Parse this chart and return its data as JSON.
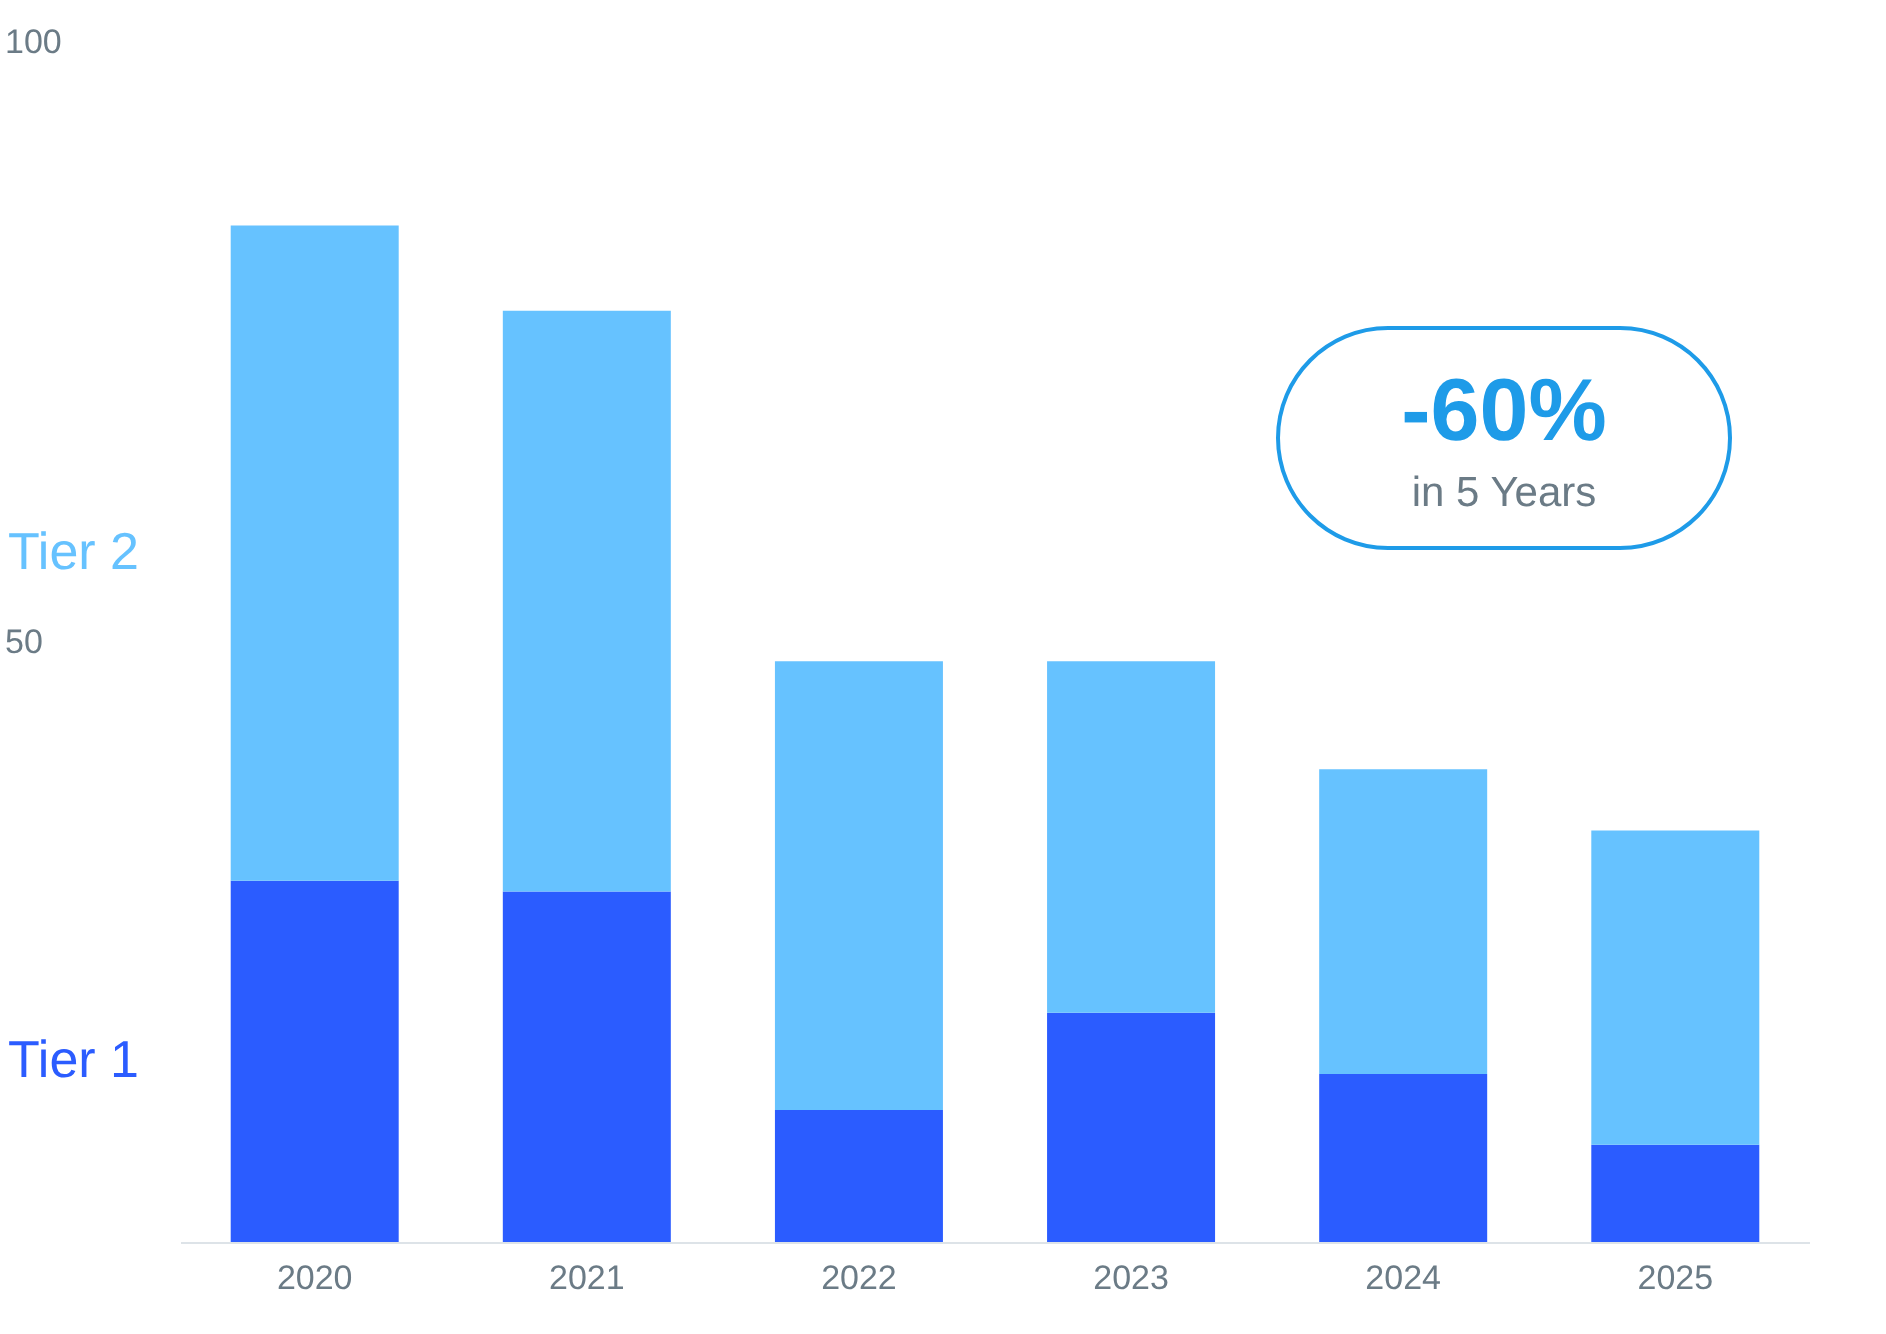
{
  "chart_data": {
    "type": "bar",
    "stacked": true,
    "categories": [
      "2020",
      "2021",
      "2022",
      "2023",
      "2024",
      "2025"
    ],
    "series": [
      {
        "name": "Tier 1",
        "color": "#2b5cff",
        "values": [
          30.1,
          29.2,
          11.0,
          19.1,
          14.0,
          8.1
        ]
      },
      {
        "name": "Tier 2",
        "color": "#66c2ff",
        "values": [
          54.6,
          48.4,
          37.4,
          29.3,
          25.4,
          26.2
        ]
      }
    ],
    "ylim": [
      0,
      100
    ],
    "yticks": [
      50,
      100
    ],
    "grid": false,
    "annotations": [
      "-60%",
      "in 5 Years"
    ]
  }
}
